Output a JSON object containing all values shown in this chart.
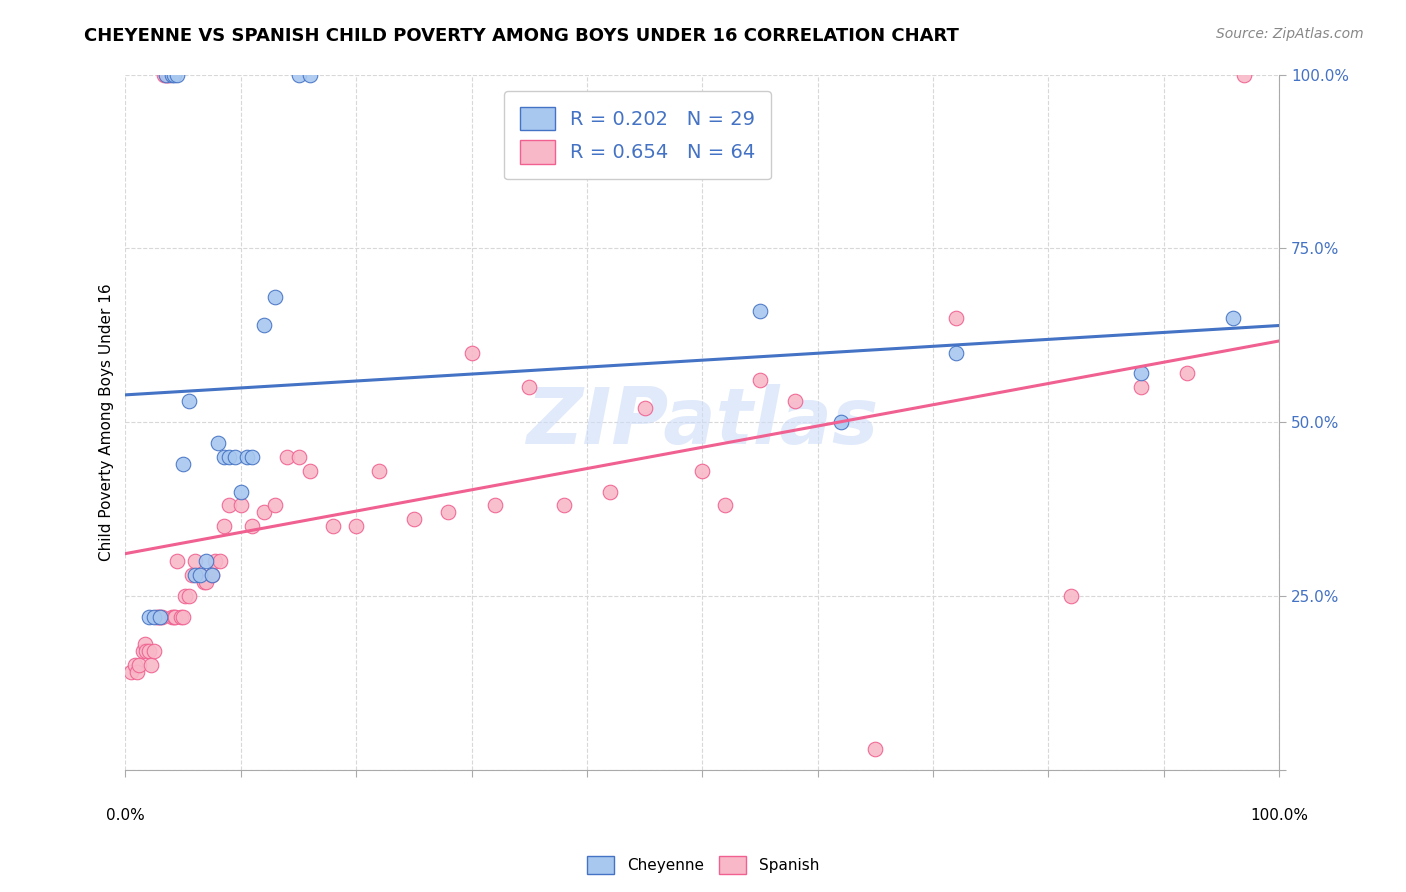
{
  "title": "CHEYENNE VS SPANISH CHILD POVERTY AMONG BOYS UNDER 16 CORRELATION CHART",
  "source": "Source: ZipAtlas.com",
  "ylabel": "Child Poverty Among Boys Under 16",
  "watermark": "ZIPatlas",
  "cheyenne_R": 0.202,
  "cheyenne_N": 29,
  "spanish_R": 0.654,
  "spanish_N": 64,
  "cheyenne_color": "#a8c8f0",
  "spanish_color": "#f8b8c8",
  "cheyenne_line_color": "#4472c4",
  "spanish_line_color": "#f06090",
  "cheyenne_x": [
    0.02,
    0.025,
    0.03,
    0.035,
    0.04,
    0.042,
    0.045,
    0.05,
    0.055,
    0.06,
    0.065,
    0.07,
    0.075,
    0.08,
    0.085,
    0.09,
    0.095,
    0.1,
    0.105,
    0.11,
    0.12,
    0.13,
    0.15,
    0.16,
    0.55,
    0.62,
    0.72,
    0.88,
    0.96
  ],
  "cheyenne_y": [
    0.22,
    0.22,
    0.22,
    1.0,
    1.0,
    1.0,
    1.0,
    0.44,
    0.53,
    0.28,
    0.28,
    0.3,
    0.28,
    0.47,
    0.45,
    0.45,
    0.45,
    0.4,
    0.45,
    0.45,
    0.64,
    0.68,
    1.0,
    1.0,
    0.66,
    0.5,
    0.6,
    0.57,
    0.65
  ],
  "spanish_x": [
    0.005,
    0.008,
    0.01,
    0.012,
    0.015,
    0.017,
    0.018,
    0.02,
    0.022,
    0.025,
    0.027,
    0.028,
    0.03,
    0.032,
    0.033,
    0.035,
    0.037,
    0.038,
    0.04,
    0.042,
    0.043,
    0.045,
    0.048,
    0.05,
    0.052,
    0.055,
    0.058,
    0.06,
    0.065,
    0.068,
    0.07,
    0.075,
    0.078,
    0.082,
    0.085,
    0.09,
    0.1,
    0.11,
    0.12,
    0.13,
    0.14,
    0.15,
    0.16,
    0.18,
    0.2,
    0.22,
    0.25,
    0.28,
    0.3,
    0.32,
    0.35,
    0.38,
    0.42,
    0.45,
    0.5,
    0.52,
    0.55,
    0.58,
    0.65,
    0.72,
    0.82,
    0.88,
    0.92,
    0.97
  ],
  "spanish_y": [
    0.14,
    0.15,
    0.14,
    0.15,
    0.17,
    0.18,
    0.17,
    0.17,
    0.15,
    0.17,
    0.22,
    0.22,
    0.22,
    0.22,
    1.0,
    1.0,
    1.0,
    1.0,
    0.22,
    0.22,
    0.22,
    0.3,
    0.22,
    0.22,
    0.25,
    0.25,
    0.28,
    0.3,
    0.28,
    0.27,
    0.27,
    0.28,
    0.3,
    0.3,
    0.35,
    0.38,
    0.38,
    0.35,
    0.37,
    0.38,
    0.45,
    0.45,
    0.43,
    0.35,
    0.35,
    0.43,
    0.36,
    0.37,
    0.6,
    0.38,
    0.55,
    0.38,
    0.4,
    0.52,
    0.43,
    0.38,
    0.56,
    0.53,
    0.03,
    0.65,
    0.25,
    0.55,
    0.57,
    1.0
  ],
  "yticks": [
    0.0,
    0.25,
    0.5,
    0.75,
    1.0
  ],
  "ytick_labels": [
    "",
    "25.0%",
    "50.0%",
    "75.0%",
    "100.0%"
  ],
  "xticks": [
    0.0,
    0.1,
    0.2,
    0.3,
    0.4,
    0.5,
    0.6,
    0.7,
    0.8,
    0.9,
    1.0
  ],
  "xtick_labels": [
    "0.0%",
    "",
    "",
    "",
    "",
    "",
    "",
    "",
    "",
    "",
    "100.0%"
  ],
  "background_color": "#ffffff",
  "grid_color": "#d8d8d8",
  "title_fontsize": 13,
  "label_fontsize": 11,
  "tick_fontsize": 11,
  "legend_fontsize": 14,
  "source_fontsize": 10
}
